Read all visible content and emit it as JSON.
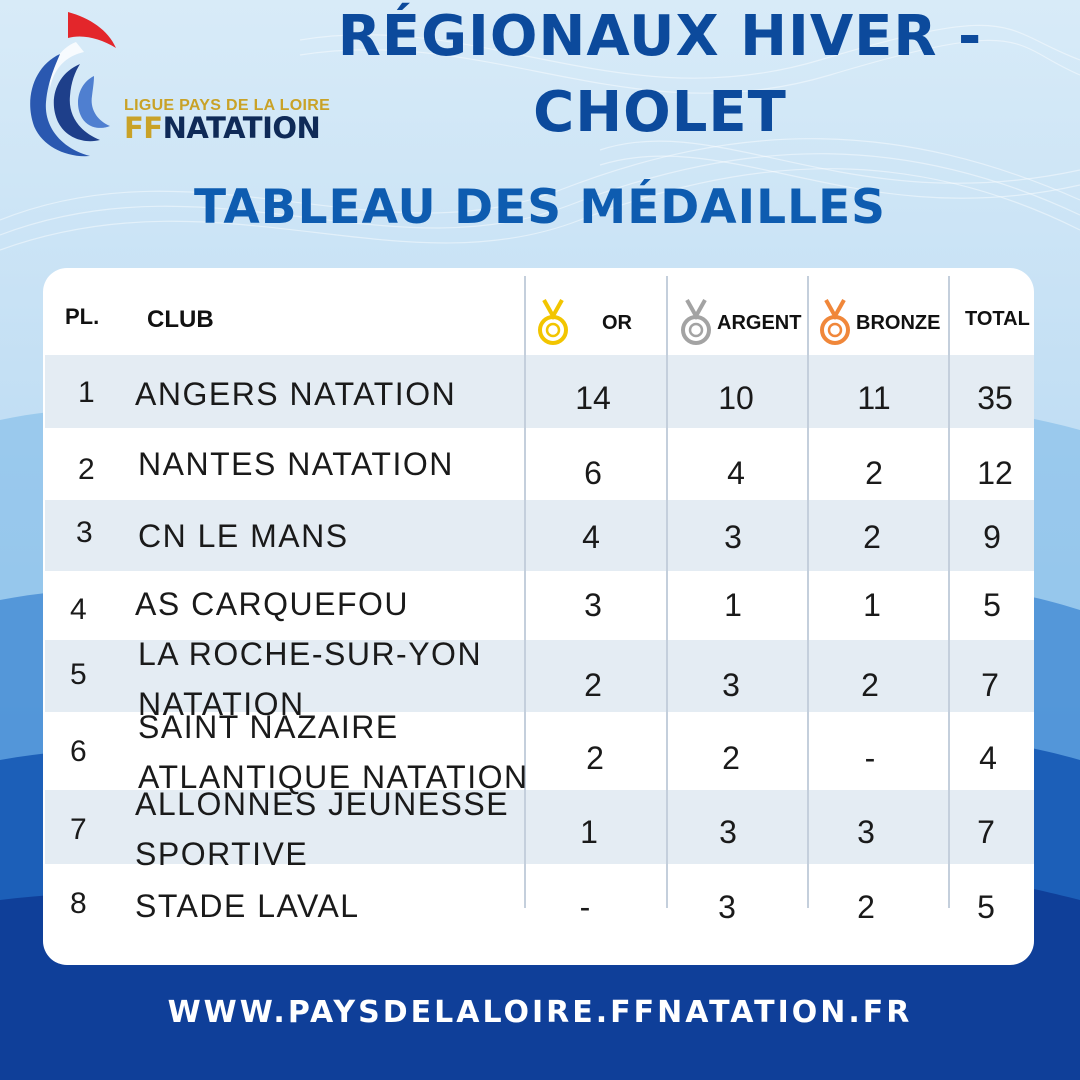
{
  "logo": {
    "league": "LIGUE PAYS DE LA LOIRE",
    "ff": "FF",
    "natation": "NATATION"
  },
  "title": {
    "line1": "RÉGIONAUX HIVER -",
    "line2": "CHOLET"
  },
  "subtitle": "TABLEAU DES MÉDAILLES",
  "table": {
    "headers": {
      "place": "PL.",
      "club": "CLUB",
      "gold": "OR",
      "silver": "ARGENT",
      "bronze": "BRONZE",
      "total": "TOTAL"
    },
    "rows": [
      {
        "place": "1",
        "club_line1": "ANGERS NATATION",
        "club_line2": "",
        "gold": "14",
        "silver": "10",
        "bronze": "11",
        "total": "35"
      },
      {
        "place": "2",
        "club_line1": "NANTES NATATION",
        "club_line2": "",
        "gold": "6",
        "silver": "4",
        "bronze": "2",
        "total": "12"
      },
      {
        "place": "3",
        "club_line1": "CN LE MANS",
        "club_line2": "",
        "gold": "4",
        "silver": "3",
        "bronze": "2",
        "total": "9"
      },
      {
        "place": "4",
        "club_line1": "AS CARQUEFOU",
        "club_line2": "",
        "gold": "3",
        "silver": "1",
        "bronze": "1",
        "total": "5"
      },
      {
        "place": "5",
        "club_line1": "LA ROCHE-SUR-YON",
        "club_line2": "NATATION",
        "gold": "2",
        "silver": "3",
        "bronze": "2",
        "total": "7"
      },
      {
        "place": "6",
        "club_line1": "SAINT NAZAIRE",
        "club_line2": "ATLANTIQUE NATATION",
        "gold": "2",
        "silver": "2",
        "bronze": "-",
        "total": "4"
      },
      {
        "place": "7",
        "club_line1": "ALLONNES JEUNESSE",
        "club_line2": "SPORTIVE",
        "gold": "1",
        "silver": "3",
        "bronze": "3",
        "total": "7"
      },
      {
        "place": "8",
        "club_line1": "STADE LAVAL",
        "club_line2": "",
        "gold": "-",
        "silver": "3",
        "bronze": "2",
        "total": "5"
      }
    ]
  },
  "colors": {
    "title": "#0c4a9c",
    "gold_medal": "#f2c500",
    "silver_medal": "#a3a3a3",
    "bronze_medal": "#f0873a"
  },
  "icons": {
    "gold": "gold-medal-icon",
    "silver": "silver-medal-icon",
    "bronze": "bronze-medal-icon"
  },
  "footer": "WWW.PAYSDELALOIRE.FFNATATION.FR"
}
